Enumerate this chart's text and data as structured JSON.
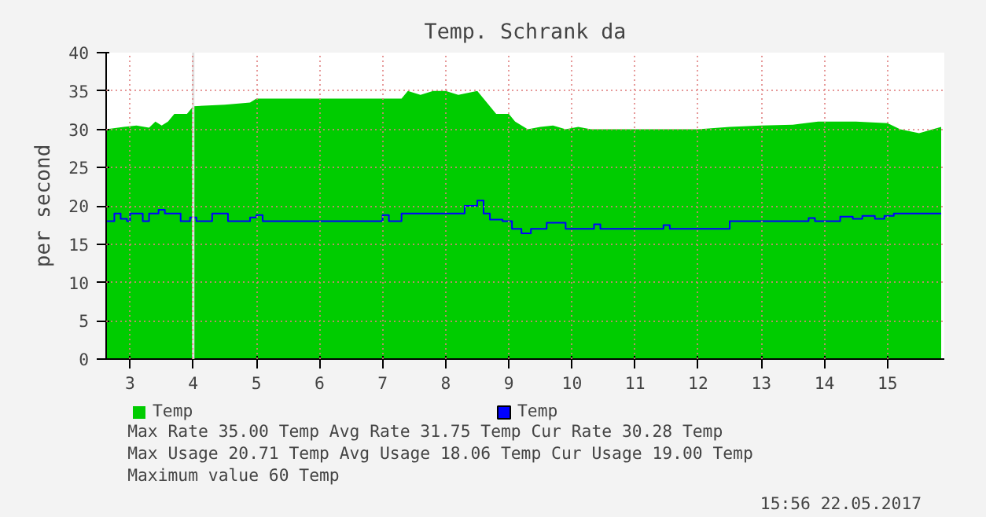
{
  "chart_data": {
    "type": "area",
    "title": "Temp. Schrank da",
    "ylabel": "per second",
    "xlim": [
      2.62,
      15.9
    ],
    "ylim": [
      0,
      40
    ],
    "xticks": [
      3,
      4,
      5,
      6,
      7,
      8,
      9,
      10,
      11,
      12,
      13,
      14,
      15
    ],
    "yticks": [
      0,
      5,
      10,
      15,
      20,
      25,
      30,
      35,
      40
    ],
    "grid": true,
    "legend": "bottom left",
    "series": [
      {
        "name": "Temp",
        "color": "#00cc00",
        "x": [
          2.62,
          2.9,
          3.1,
          3.3,
          3.4,
          3.5,
          3.6,
          3.7,
          3.9,
          4.0,
          4.5,
          4.9,
          5.0,
          7.0,
          7.3,
          7.4,
          7.6,
          7.8,
          8.0,
          8.2,
          8.5,
          8.6,
          8.8,
          9.0,
          9.1,
          9.3,
          9.5,
          9.7,
          9.9,
          10.1,
          10.3,
          11.0,
          12.0,
          12.5,
          13.0,
          13.5,
          13.9,
          14.5,
          15.0,
          15.2,
          15.5,
          15.85
        ],
        "values": [
          30,
          30.3,
          30.5,
          30.2,
          31,
          30.5,
          31,
          32,
          32,
          33,
          33.2,
          33.5,
          34,
          34,
          34,
          35,
          34.5,
          35,
          35,
          34.5,
          35,
          34,
          32,
          32,
          31,
          30,
          30.3,
          30.5,
          30,
          30.3,
          30,
          30,
          30,
          30.3,
          30.5,
          30.6,
          31,
          31,
          30.8,
          30,
          29.5,
          30.3
        ]
      },
      {
        "name": "Temp",
        "type": "step",
        "color": "#0000ff",
        "x": [
          2.62,
          2.75,
          2.85,
          2.95,
          3.0,
          3.2,
          3.3,
          3.45,
          3.55,
          3.8,
          3.95,
          4.05,
          4.3,
          4.55,
          4.9,
          5.0,
          5.1,
          7.0,
          7.1,
          7.3,
          8.3,
          8.5,
          8.6,
          8.7,
          8.9,
          9.05,
          9.2,
          9.35,
          9.6,
          9.9,
          10.35,
          10.45,
          11.45,
          11.55,
          12.5,
          13.75,
          13.85,
          14.25,
          14.45,
          14.6,
          14.8,
          14.95,
          15.1,
          15.85
        ],
        "values": [
          18,
          19,
          18.3,
          18,
          19,
          18,
          19,
          19.5,
          19,
          18,
          18.5,
          18,
          19,
          18,
          18.5,
          18.8,
          18,
          18.8,
          18,
          19,
          20,
          20.7,
          19,
          18.2,
          18,
          17,
          16.4,
          17,
          17.8,
          17,
          17.6,
          17,
          17.5,
          17,
          18,
          18.4,
          18,
          18.6,
          18.3,
          18.7,
          18.3,
          18.7,
          19,
          19
        ]
      }
    ],
    "ref_lines": [
      {
        "axis": "x",
        "value": 4,
        "color": "#e0e0e0"
      }
    ],
    "annotations": [
      "Max Rate    35.00  Temp  Avg Rate    31.75  Temp  Cur Rate    30.28  Temp",
      "Max  Usage  20.71  Temp  Avg  Usage  18.06  Temp  Cur  Usage  19.00  Temp",
      "Maximum value 60 Temp",
      "15:56 22.05.2017"
    ]
  }
}
